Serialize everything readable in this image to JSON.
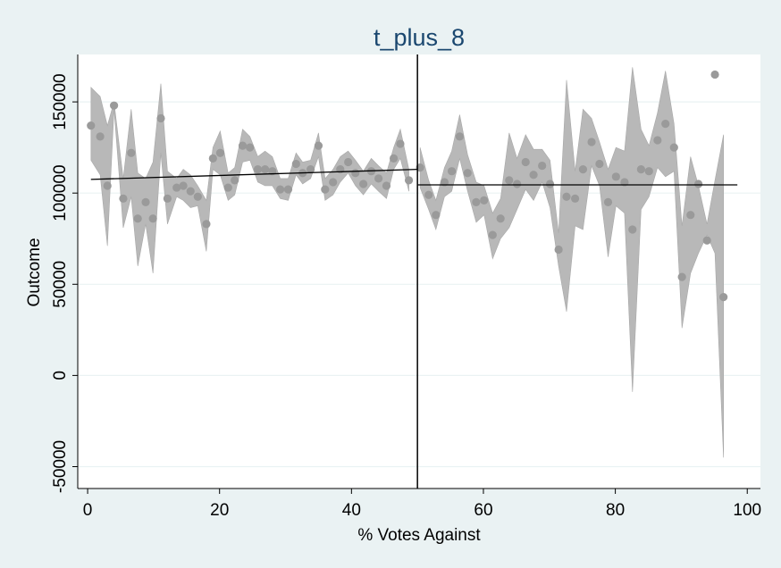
{
  "chart_data": {
    "type": "scatter",
    "title": "t_plus_8",
    "xlabel": "% Votes Against",
    "ylabel": "Outcome",
    "xlim": [
      -1.5,
      102
    ],
    "ylim": [
      -62000,
      176000
    ],
    "x_ticks": [
      0,
      20,
      40,
      60,
      80,
      100
    ],
    "y_ticks": [
      -50000,
      0,
      50000,
      100000,
      150000
    ],
    "x_tick_labels": [
      "0",
      "20",
      "40",
      "60",
      "80",
      "100"
    ],
    "y_tick_labels": [
      "-50000",
      "0",
      "50000",
      "100000",
      "150000"
    ],
    "grid": true,
    "cutoff_x": 50,
    "colors": {
      "band": "#b8b8b8",
      "points": "#9a9a9a",
      "line": "#000000",
      "title": "#1a476f",
      "background": "#eaf2f3"
    },
    "fit_left": {
      "x": [
        0.5,
        50
      ],
      "y": [
        107500,
        113000
      ]
    },
    "fit_right": {
      "x": [
        50,
        98.5
      ],
      "y": [
        104500,
        104500
      ]
    },
    "points": [
      [
        0.5,
        137000
      ],
      [
        1.9,
        131000
      ],
      [
        3.0,
        104000
      ],
      [
        4.0,
        148000
      ],
      [
        5.4,
        97000
      ],
      [
        6.6,
        122000
      ],
      [
        7.6,
        86000
      ],
      [
        8.8,
        95000
      ],
      [
        9.9,
        86000
      ],
      [
        11.1,
        141000
      ],
      [
        12.1,
        97000
      ],
      [
        13.5,
        103000
      ],
      [
        14.5,
        104000
      ],
      [
        15.6,
        101000
      ],
      [
        16.7,
        98000
      ],
      [
        18.0,
        83000
      ],
      [
        19.0,
        119000
      ],
      [
        20.1,
        122000
      ],
      [
        21.3,
        103000
      ],
      [
        22.3,
        107000
      ],
      [
        23.5,
        126000
      ],
      [
        24.6,
        125000
      ],
      [
        25.8,
        113000
      ],
      [
        26.9,
        113000
      ],
      [
        28.0,
        112000
      ],
      [
        29.2,
        102000
      ],
      [
        30.4,
        102000
      ],
      [
        31.6,
        116000
      ],
      [
        32.6,
        111000
      ],
      [
        33.8,
        113000
      ],
      [
        35.0,
        126000
      ],
      [
        36.0,
        102000
      ],
      [
        37.2,
        106000
      ],
      [
        38.3,
        113000
      ],
      [
        39.5,
        117000
      ],
      [
        40.6,
        111000
      ],
      [
        41.8,
        105000
      ],
      [
        43.0,
        112000
      ],
      [
        44.1,
        108000
      ],
      [
        45.3,
        104000
      ],
      [
        46.4,
        119000
      ],
      [
        47.4,
        127000
      ],
      [
        48.7,
        107000
      ],
      [
        50.4,
        114000
      ],
      [
        51.7,
        99000
      ],
      [
        52.8,
        88000
      ],
      [
        54.1,
        106000
      ],
      [
        55.2,
        112000
      ],
      [
        56.4,
        131000
      ],
      [
        57.6,
        111000
      ],
      [
        58.9,
        95000
      ],
      [
        60.1,
        96000
      ],
      [
        61.4,
        77000
      ],
      [
        62.6,
        86000
      ],
      [
        63.9,
        107000
      ],
      [
        65.1,
        105000
      ],
      [
        66.4,
        117000
      ],
      [
        67.6,
        110000
      ],
      [
        68.9,
        115000
      ],
      [
        70.1,
        105000
      ],
      [
        71.4,
        69000
      ],
      [
        72.6,
        98000
      ],
      [
        73.9,
        97000
      ],
      [
        75.1,
        113000
      ],
      [
        76.4,
        128000
      ],
      [
        77.6,
        116000
      ],
      [
        78.9,
        95000
      ],
      [
        80.1,
        109000
      ],
      [
        81.4,
        106000
      ],
      [
        82.6,
        80000
      ],
      [
        83.9,
        113000
      ],
      [
        85.1,
        112000
      ],
      [
        86.4,
        129000
      ],
      [
        87.6,
        138000
      ],
      [
        88.9,
        125000
      ],
      [
        90.1,
        54000
      ],
      [
        91.4,
        88000
      ],
      [
        92.6,
        105000
      ],
      [
        93.9,
        74000
      ],
      [
        95.1,
        165000
      ],
      [
        96.4,
        43000
      ]
    ],
    "band_upper": [
      [
        0.5,
        158000
      ],
      [
        1.9,
        153000
      ],
      [
        3.0,
        137000
      ],
      [
        4.0,
        150000
      ],
      [
        5.4,
        108000
      ],
      [
        6.6,
        146000
      ],
      [
        7.6,
        111000
      ],
      [
        8.8,
        108000
      ],
      [
        9.9,
        117000
      ],
      [
        11.1,
        160000
      ],
      [
        12.1,
        112000
      ],
      [
        13.5,
        108000
      ],
      [
        14.5,
        113000
      ],
      [
        15.6,
        110000
      ],
      [
        16.7,
        104000
      ],
      [
        18.0,
        96000
      ],
      [
        19.0,
        125000
      ],
      [
        20.1,
        134000
      ],
      [
        21.3,
        111000
      ],
      [
        22.3,
        114000
      ],
      [
        23.5,
        135000
      ],
      [
        24.6,
        131000
      ],
      [
        25.8,
        120000
      ],
      [
        26.9,
        123000
      ],
      [
        28.0,
        120000
      ],
      [
        29.2,
        108000
      ],
      [
        30.4,
        108000
      ],
      [
        31.6,
        122000
      ],
      [
        32.6,
        117000
      ],
      [
        33.8,
        118000
      ],
      [
        35.0,
        133000
      ],
      [
        36.0,
        108000
      ],
      [
        37.2,
        113000
      ],
      [
        38.3,
        120000
      ],
      [
        39.5,
        123000
      ],
      [
        40.6,
        118000
      ],
      [
        41.8,
        112000
      ],
      [
        43.0,
        119000
      ],
      [
        44.1,
        115000
      ],
      [
        45.3,
        111000
      ],
      [
        46.4,
        125000
      ],
      [
        47.4,
        135000
      ],
      [
        48.7,
        113000
      ],
      [
        50.4,
        125000
      ],
      [
        51.7,
        107000
      ],
      [
        52.8,
        96000
      ],
      [
        54.1,
        114000
      ],
      [
        55.2,
        123000
      ],
      [
        56.4,
        143000
      ],
      [
        57.6,
        121000
      ],
      [
        58.9,
        106000
      ],
      [
        60.1,
        104000
      ],
      [
        61.4,
        89000
      ],
      [
        62.6,
        97000
      ],
      [
        63.9,
        133000
      ],
      [
        65.1,
        119000
      ],
      [
        66.4,
        132000
      ],
      [
        67.6,
        124000
      ],
      [
        68.9,
        124000
      ],
      [
        70.1,
        118000
      ],
      [
        71.4,
        78000
      ],
      [
        72.6,
        162000
      ],
      [
        73.9,
        112000
      ],
      [
        75.1,
        146000
      ],
      [
        76.4,
        141000
      ],
      [
        77.6,
        128000
      ],
      [
        78.9,
        113000
      ],
      [
        80.1,
        125000
      ],
      [
        81.4,
        123000
      ],
      [
        82.6,
        169000
      ],
      [
        83.9,
        135000
      ],
      [
        85.1,
        126000
      ],
      [
        86.4,
        144000
      ],
      [
        87.6,
        167000
      ],
      [
        88.9,
        138000
      ],
      [
        90.1,
        82000
      ],
      [
        91.4,
        120000
      ],
      [
        92.6,
        104000
      ],
      [
        93.9,
        83000
      ],
      [
        95.1,
        107000
      ],
      [
        96.4,
        132000
      ]
    ],
    "band_lower": [
      [
        0.5,
        118000
      ],
      [
        1.9,
        110000
      ],
      [
        3.0,
        71000
      ],
      [
        4.0,
        146000
      ],
      [
        5.4,
        81000
      ],
      [
        6.6,
        98000
      ],
      [
        7.6,
        60000
      ],
      [
        8.8,
        83000
      ],
      [
        9.9,
        56000
      ],
      [
        11.1,
        122000
      ],
      [
        12.1,
        83000
      ],
      [
        13.5,
        98000
      ],
      [
        14.5,
        96000
      ],
      [
        15.6,
        92000
      ],
      [
        16.7,
        93000
      ],
      [
        18.0,
        68000
      ],
      [
        19.0,
        113000
      ],
      [
        20.1,
        110000
      ],
      [
        21.3,
        96000
      ],
      [
        22.3,
        99000
      ],
      [
        23.5,
        117000
      ],
      [
        24.6,
        118000
      ],
      [
        25.8,
        106000
      ],
      [
        26.9,
        104000
      ],
      [
        28.0,
        104000
      ],
      [
        29.2,
        97000
      ],
      [
        30.4,
        96000
      ],
      [
        31.6,
        110000
      ],
      [
        32.6,
        105000
      ],
      [
        33.8,
        108000
      ],
      [
        35.0,
        120000
      ],
      [
        36.0,
        96000
      ],
      [
        37.2,
        99000
      ],
      [
        38.3,
        106000
      ],
      [
        39.5,
        111000
      ],
      [
        40.6,
        104000
      ],
      [
        41.8,
        99000
      ],
      [
        43.0,
        105000
      ],
      [
        44.1,
        101000
      ],
      [
        45.3,
        97000
      ],
      [
        46.4,
        113000
      ],
      [
        47.4,
        119000
      ],
      [
        48.7,
        101000
      ],
      [
        50.4,
        103000
      ],
      [
        51.7,
        91000
      ],
      [
        52.8,
        80000
      ],
      [
        54.1,
        98000
      ],
      [
        55.2,
        101000
      ],
      [
        56.4,
        119000
      ],
      [
        57.6,
        101000
      ],
      [
        58.9,
        84000
      ],
      [
        60.1,
        88000
      ],
      [
        61.4,
        64000
      ],
      [
        62.6,
        75000
      ],
      [
        63.9,
        81000
      ],
      [
        65.1,
        91000
      ],
      [
        66.4,
        102000
      ],
      [
        67.6,
        96000
      ],
      [
        68.9,
        106000
      ],
      [
        70.1,
        92000
      ],
      [
        71.4,
        60000
      ],
      [
        72.6,
        35000
      ],
      [
        73.9,
        82000
      ],
      [
        75.1,
        80000
      ],
      [
        76.4,
        115000
      ],
      [
        77.6,
        104000
      ],
      [
        78.9,
        65000
      ],
      [
        80.1,
        93000
      ],
      [
        81.4,
        89000
      ],
      [
        82.6,
        -9000
      ],
      [
        83.9,
        91000
      ],
      [
        85.1,
        98000
      ],
      [
        86.4,
        114000
      ],
      [
        87.6,
        109000
      ],
      [
        88.9,
        112000
      ],
      [
        90.1,
        26000
      ],
      [
        91.4,
        56000
      ],
      [
        92.6,
        67000
      ],
      [
        93.9,
        77000
      ],
      [
        95.1,
        67000
      ],
      [
        96.4,
        -45000
      ]
    ]
  }
}
